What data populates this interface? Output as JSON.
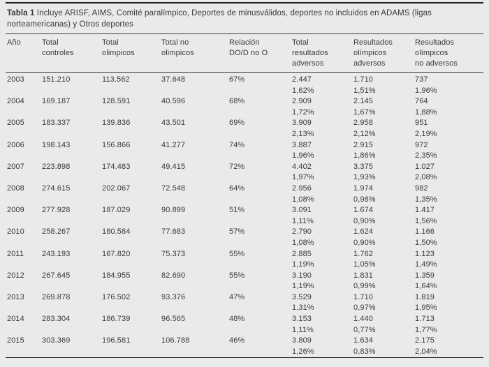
{
  "page": {
    "background_color": "#e9eaea",
    "text_color": "#3a3a3a",
    "rule_color": "#2a2a2a"
  },
  "table": {
    "caption_label": "Tabla 1",
    "caption_text": "Incluye ARISF, AIMS, Comité paralímpico, Deportes de minusválidos, deportes no incluidos en ADAMS (ligas norteamericanas) y Otros deportes",
    "columns": [
      "Año",
      "Total\ncontroles",
      "Total\nolimpicos",
      "Total no\nolimpicos",
      "Relación\nDO/D no O",
      "Total\nresultados\nadversos",
      "Resultados\nolímpicos\nadversos",
      "Resultados\nolímpicos\nno adversos"
    ],
    "rows": [
      {
        "values": [
          "2003",
          "151.210",
          "113.562",
          "37.648",
          "67%",
          "2.447",
          "1.710",
          "737"
        ],
        "pcts": [
          "1,62%",
          "1,51%",
          "1,96%"
        ]
      },
      {
        "values": [
          "2004",
          "169.187",
          "128.591",
          "40.596",
          "68%",
          "2.909",
          "2.145",
          "764"
        ],
        "pcts": [
          "1,72%",
          "1,67%",
          "1,88%"
        ]
      },
      {
        "values": [
          "2005",
          "183.337",
          "139.836",
          "43.501",
          "69%",
          "3.909",
          "2.958",
          "951"
        ],
        "pcts": [
          "2,13%",
          "2,12%",
          "2,19%"
        ]
      },
      {
        "values": [
          "2006",
          "198.143",
          "156.866",
          "41.277",
          "74%",
          "3.887",
          "2.915",
          "972"
        ],
        "pcts": [
          "1,96%",
          "1,86%",
          "2,35%"
        ]
      },
      {
        "values": [
          "2007",
          "223.898",
          "174.483",
          "49.415",
          "72%",
          "4.402",
          "3.375",
          "1.027"
        ],
        "pcts": [
          "1,97%",
          "1,93%",
          "2,08%"
        ]
      },
      {
        "values": [
          "2008",
          "274.615",
          "202.067",
          "72.548",
          "64%",
          "2.956",
          "1.974",
          "982"
        ],
        "pcts": [
          "1,08%",
          "0,98%",
          "1,35%"
        ]
      },
      {
        "values": [
          "2009",
          "277.928",
          "187.029",
          "90.899",
          "51%",
          "3.091",
          "1.674",
          "1.417"
        ],
        "pcts": [
          "1,11%",
          "0,90%",
          "1,56%"
        ]
      },
      {
        "values": [
          "2010",
          "258.267",
          "180.584",
          "77.683",
          "57%",
          "2.790",
          "1.624",
          "1.166"
        ],
        "pcts": [
          "1,08%",
          "0,90%",
          "1,50%"
        ]
      },
      {
        "values": [
          "2011",
          "243.193",
          "167.820",
          "75.373",
          "55%",
          "2.885",
          "1.762",
          "1.123"
        ],
        "pcts": [
          "1,19%",
          "1,05%",
          "1,49%"
        ]
      },
      {
        "values": [
          "2012",
          "267.645",
          "184.955",
          "82.690",
          "55%",
          "3.190",
          "1.831",
          "1.359"
        ],
        "pcts": [
          "1,19%",
          "0,99%",
          "1,64%"
        ]
      },
      {
        "values": [
          "2013",
          "269.878",
          "176.502",
          "93.376",
          "47%",
          "3.529",
          "1.710",
          "1.819"
        ],
        "pcts": [
          "1,31%",
          "0,97%",
          "1,95%"
        ]
      },
      {
        "values": [
          "2014",
          "283.304",
          "186.739",
          "96.565",
          "48%",
          "3.153",
          "1.440",
          "1.713"
        ],
        "pcts": [
          "1,11%",
          "0,77%",
          "1,77%"
        ]
      },
      {
        "values": [
          "2015",
          "303.369",
          "196.581",
          "106.788",
          "46%",
          "3.809",
          "1.634",
          "2.175"
        ],
        "pcts": [
          "1,26%",
          "0,83%",
          "2,04%"
        ]
      }
    ]
  }
}
